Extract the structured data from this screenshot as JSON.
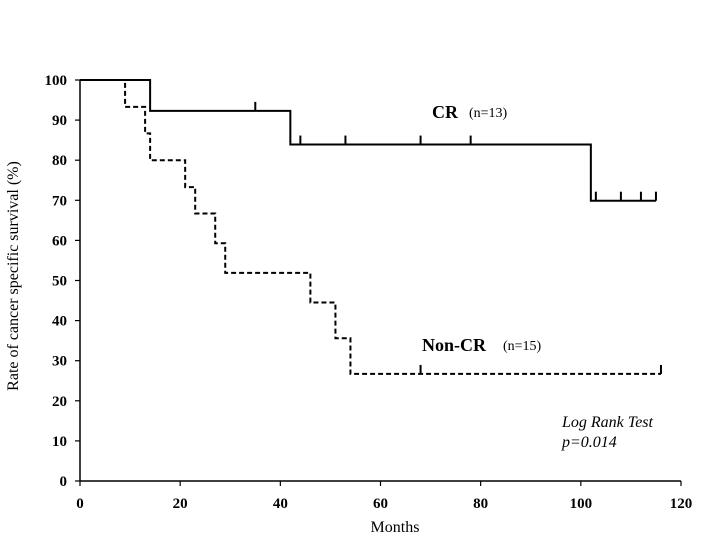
{
  "chart_data": {
    "type": "line",
    "subtype": "kaplan-meier",
    "xlabel": "Months",
    "ylabel": "Rate of cancer specific survival (%)",
    "xlim": [
      0,
      120
    ],
    "ylim": [
      0,
      100
    ],
    "xticks": [
      "0",
      "20",
      "40",
      "60",
      "80",
      "100",
      "120"
    ],
    "yticks": [
      "0",
      "10",
      "20",
      "30",
      "40",
      "50",
      "60",
      "70",
      "80",
      "90",
      "100"
    ],
    "grid": false,
    "series": [
      {
        "name": "CR",
        "n_label": "(n=13)",
        "line_style": "solid",
        "steps": [
          [
            0,
            100
          ],
          [
            14,
            92.3
          ],
          [
            42,
            83.9
          ],
          [
            102,
            69.9
          ],
          [
            115,
            69.9
          ]
        ],
        "censored": [
          [
            35,
            92.3
          ],
          [
            44,
            83.9
          ],
          [
            53,
            83.9
          ],
          [
            68,
            83.9
          ],
          [
            78,
            83.9
          ],
          [
            103,
            69.9
          ],
          [
            108,
            69.9
          ],
          [
            112,
            69.9
          ],
          [
            115,
            69.9
          ]
        ]
      },
      {
        "name": "Non-CR",
        "n_label": "(n=15)",
        "line_style": "dashed",
        "steps": [
          [
            0,
            100
          ],
          [
            9,
            93.3
          ],
          [
            13,
            86.7
          ],
          [
            14,
            80
          ],
          [
            21,
            73.3
          ],
          [
            23,
            66.7
          ],
          [
            27,
            59.3
          ],
          [
            29,
            51.9
          ],
          [
            46,
            44.5
          ],
          [
            51,
            35.6
          ],
          [
            54,
            26.7
          ],
          [
            116,
            26.7
          ]
        ],
        "censored": [
          [
            68,
            26.7
          ],
          [
            116,
            26.7
          ]
        ]
      }
    ],
    "annotations": [
      "Log Rank Test",
      "p=0.014"
    ]
  },
  "colors": {
    "line": "#000000",
    "background": "#ffffff"
  }
}
